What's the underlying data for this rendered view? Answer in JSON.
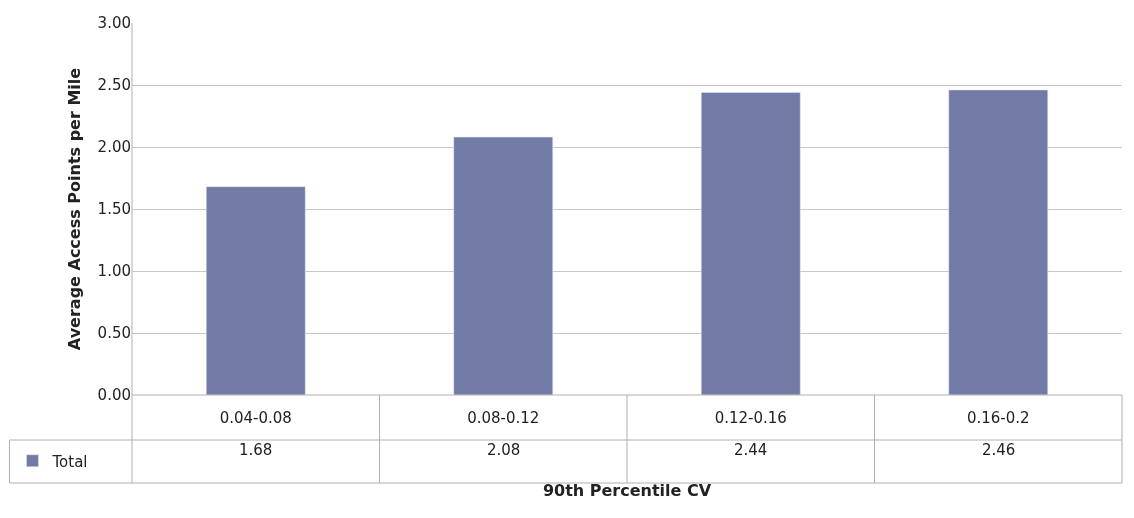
{
  "chart_data": {
    "type": "bar",
    "xlabel": "90th Percentile CV",
    "ylabel": "Average Access Points per Mile",
    "categories": [
      "0.04-0.08",
      "0.08-0.12",
      "0.12-0.16",
      "0.16-0.2"
    ],
    "series": [
      {
        "name": "Total",
        "color": "#717ba6",
        "values": [
          1.68,
          2.08,
          2.44,
          2.46
        ]
      }
    ],
    "ylim": [
      0,
      3
    ],
    "yticks": [
      {
        "value": 0,
        "label": "0.00"
      },
      {
        "value": 0.5,
        "label": "0.50"
      },
      {
        "value": 1,
        "label": "1.00"
      },
      {
        "value": 1.5,
        "label": "1.50"
      },
      {
        "value": 2,
        "label": "2.00"
      },
      {
        "value": 2.5,
        "label": "2.50"
      },
      {
        "value": 3,
        "label": "3.00"
      }
    ],
    "grid": "y",
    "legend": "bottom left",
    "data_labels": true
  }
}
